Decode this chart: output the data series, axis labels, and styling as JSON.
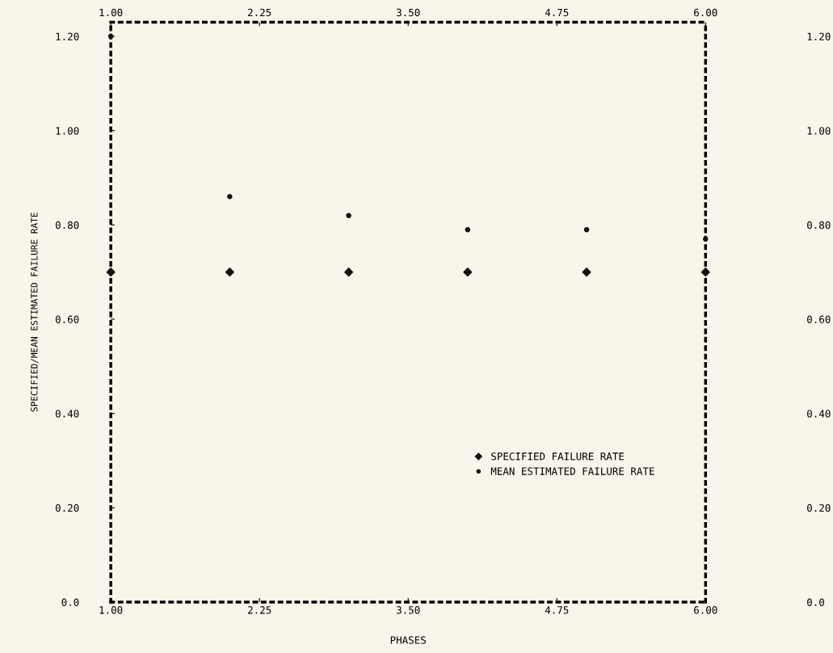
{
  "chart_data": {
    "type": "scatter",
    "xlabel": "PHASES",
    "ylabel": "SPECIFIED/MEAN ESTIMATED FAILURE RATE",
    "x": [
      1,
      2,
      3,
      4,
      5,
      6
    ],
    "series": [
      {
        "name": "SPECIFIED FAILURE RATE",
        "color": "#111111",
        "marker": "diamond",
        "values": [
          0.7,
          0.7,
          0.7,
          0.7,
          0.7,
          0.7
        ]
      },
      {
        "name": "MEAN ESTIMATED FAILURE RATE",
        "color": "#111111",
        "marker": "circle",
        "values": [
          1.2,
          0.86,
          0.82,
          0.79,
          0.79,
          0.77
        ]
      }
    ],
    "xlim": [
      1,
      6
    ],
    "xticks": [
      {
        "value": 1,
        "label": "1.00"
      },
      2.25,
      {
        "value": 3.5,
        "label": "3.50"
      },
      4.75,
      {
        "value": 6,
        "label": "6.00"
      }
    ],
    "x2lim": [
      1,
      6
    ],
    "x2ticks": [
      {
        "value": 1,
        "label": "1.00"
      },
      2.25,
      {
        "value": 3.5,
        "label": "3.50"
      },
      4.75,
      {
        "value": 6,
        "label": "6.00"
      }
    ],
    "ylim": [
      0,
      1.23
    ],
    "yticks": [
      {
        "value": 0,
        "label": "0.0"
      },
      {
        "value": 0.2,
        "label": "0.20"
      },
      {
        "value": 0.4,
        "label": "0.40"
      },
      {
        "value": 0.6,
        "label": "0.60"
      },
      {
        "value": 0.8,
        "label": "0.80"
      },
      {
        "value": 1.0,
        "label": "1.00"
      },
      {
        "value": 1.2,
        "label": "1.20"
      }
    ],
    "y2lim": [
      0,
      1.23
    ],
    "y2ticks": [
      {
        "value": 0,
        "label": "0.0"
      },
      {
        "value": 0.2,
        "label": "0.20"
      },
      {
        "value": 0.4,
        "label": "0.40"
      },
      {
        "value": 0.6,
        "label": "0.60"
      },
      {
        "value": 0.8,
        "label": "0.80"
      },
      {
        "value": 1.0,
        "label": "1.00"
      },
      {
        "value": 1.2,
        "label": "1.20"
      }
    ],
    "legend": "lower right",
    "grid": false
  }
}
